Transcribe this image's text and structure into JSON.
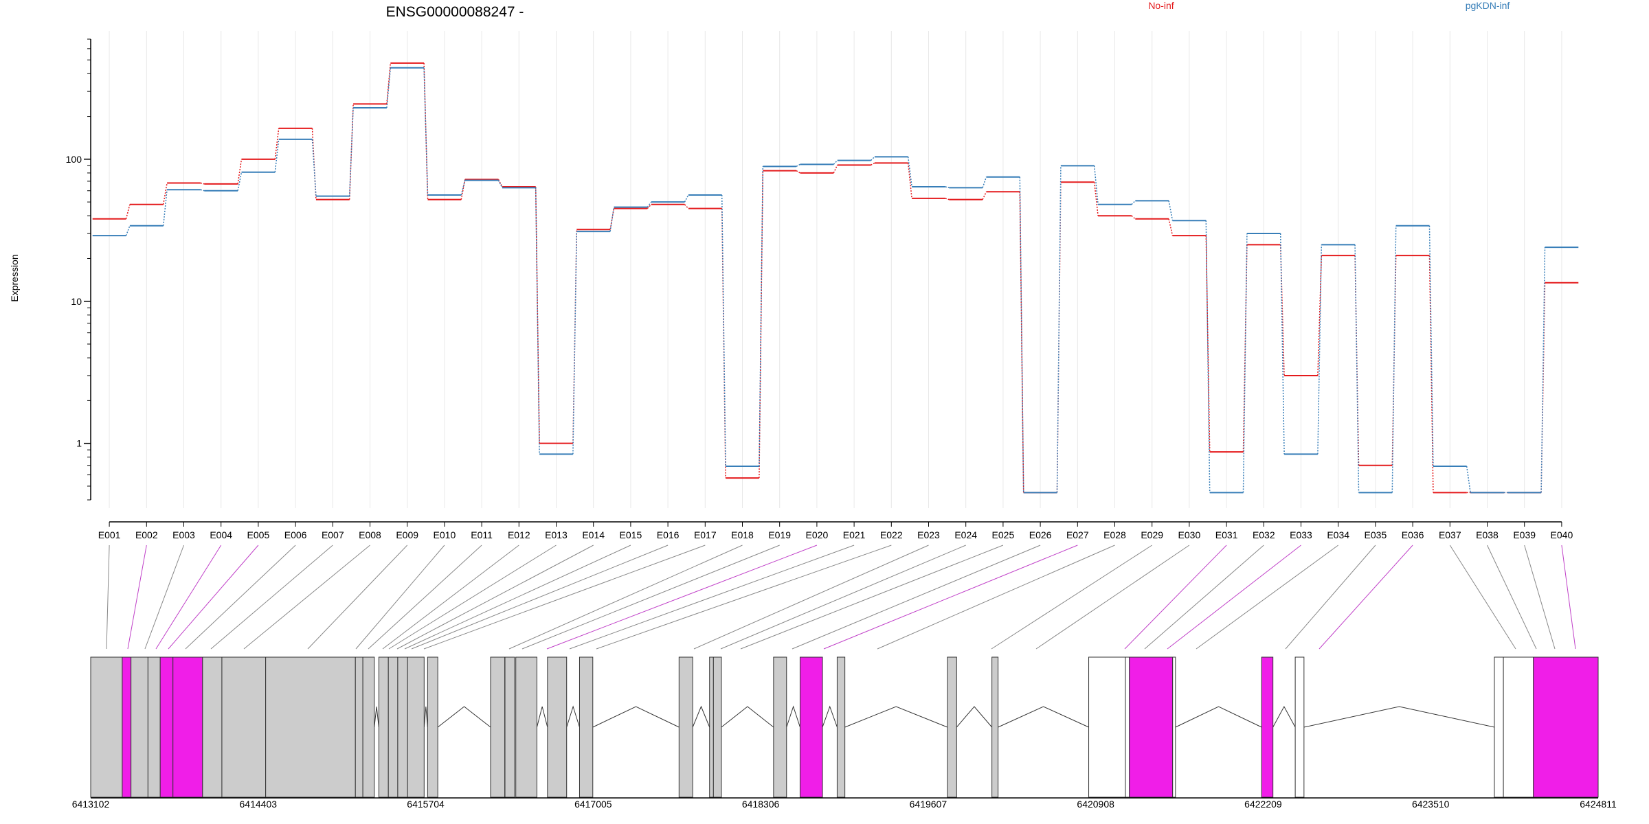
{
  "title": "ENSG00000088247 -",
  "legend": [
    {
      "name": "No-inf",
      "color": "#e41a1c"
    },
    {
      "name": "pgKDN-inf",
      "color": "#377eb8"
    }
  ],
  "colors": {
    "no_inf": "#e41a1c",
    "pgkdn_inf": "#377eb8",
    "exon_grey": "#cccccc",
    "exon_highlight": "#f01ee8",
    "intron_line": "#333333",
    "connector_grey": "#888888"
  },
  "chart_data": {
    "type": "line",
    "ylabel": "Expression",
    "yscale": "log",
    "ylim": [
      0.35,
      800
    ],
    "yticks": [
      1,
      10,
      100
    ],
    "ytick_labels": [
      "1",
      "10",
      "100"
    ],
    "categories": [
      "E001",
      "E002",
      "E003",
      "E004",
      "E005",
      "E006",
      "E007",
      "E008",
      "E009",
      "E010",
      "E011",
      "E012",
      "E013",
      "E014",
      "E015",
      "E016",
      "E017",
      "E018",
      "E019",
      "E020",
      "E021",
      "E022",
      "E023",
      "E024",
      "E025",
      "E026",
      "E027",
      "E028",
      "E029",
      "E030",
      "E031",
      "E032",
      "E033",
      "E034",
      "E035",
      "E036",
      "E037",
      "E038",
      "E039",
      "E040"
    ],
    "series": [
      {
        "name": "No-inf",
        "values": [
          38,
          48,
          68,
          67,
          100,
          165,
          52,
          245,
          475,
          52,
          72,
          64,
          1.0,
          32,
          45,
          48,
          45,
          0.57,
          83,
          80,
          91,
          94,
          53,
          52,
          59,
          0.45,
          69,
          40,
          38,
          29,
          0.87,
          25,
          3.0,
          21,
          0.7,
          21,
          0.45,
          0.45,
          0.45,
          13.5
        ]
      },
      {
        "name": "pgKDN-inf",
        "values": [
          29,
          34,
          61,
          60,
          81,
          138,
          55,
          230,
          440,
          56,
          71,
          63,
          0.84,
          31,
          46,
          50,
          56,
          0.69,
          89,
          92,
          98,
          104,
          64,
          63,
          75,
          0.45,
          90,
          48,
          51,
          37,
          0.45,
          30,
          0.84,
          25,
          0.45,
          34,
          0.69,
          0.45,
          0.45,
          24
        ]
      }
    ],
    "highlighted_exons": [
      "E002",
      "E004",
      "E005",
      "E020",
      "E027",
      "E031",
      "E033",
      "E036",
      "E040"
    ],
    "gene_model": {
      "genomic_range": [
        6413102,
        6424811
      ],
      "axis_ticks": [
        6413102,
        6414403,
        6415704,
        6417005,
        6418306,
        6419607,
        6420908,
        6422209,
        6423510,
        6424811
      ],
      "axis_tick_labels": [
        "6413102",
        "6414403",
        "6415704",
        "6417005",
        "6418306",
        "6419607",
        "6420908",
        "6422209",
        "6423510",
        "6424811"
      ],
      "exons": [
        {
          "start": 6413102,
          "end": 6413347,
          "type": "grey"
        },
        {
          "start": 6413347,
          "end": 6413415,
          "type": "magenta"
        },
        {
          "start": 6413415,
          "end": 6413547,
          "type": "grey"
        },
        {
          "start": 6413547,
          "end": 6413642,
          "type": "grey"
        },
        {
          "start": 6413642,
          "end": 6413741,
          "type": "magenta"
        },
        {
          "start": 6413741,
          "end": 6413971,
          "type": "magenta"
        },
        {
          "start": 6413971,
          "end": 6414121,
          "type": "grey"
        },
        {
          "start": 6414121,
          "end": 6414461,
          "type": "grey"
        },
        {
          "start": 6414461,
          "end": 6415158,
          "type": "grey"
        },
        {
          "start": 6415158,
          "end": 6415216,
          "type": "grey"
        },
        {
          "start": 6415216,
          "end": 6415305,
          "type": "grey"
        },
        {
          "start": 6415340,
          "end": 6415414,
          "type": "grey"
        },
        {
          "start": 6415414,
          "end": 6415487,
          "type": "grey"
        },
        {
          "start": 6415487,
          "end": 6415563,
          "type": "grey"
        },
        {
          "start": 6415563,
          "end": 6415692,
          "type": "grey"
        },
        {
          "start": 6415719,
          "end": 6415798,
          "type": "grey"
        },
        {
          "start": 6416208,
          "end": 6416318,
          "type": "grey"
        },
        {
          "start": 6416320,
          "end": 6416395,
          "type": "grey"
        },
        {
          "start": 6416404,
          "end": 6416568,
          "type": "grey"
        },
        {
          "start": 6416650,
          "end": 6416799,
          "type": "grey"
        },
        {
          "start": 6416899,
          "end": 6417002,
          "type": "grey"
        },
        {
          "start": 6417672,
          "end": 6417778,
          "type": "grey"
        },
        {
          "start": 6417909,
          "end": 6417939,
          "type": "grey"
        },
        {
          "start": 6417939,
          "end": 6418001,
          "type": "grey"
        },
        {
          "start": 6418406,
          "end": 6418507,
          "type": "grey"
        },
        {
          "start": 6418612,
          "end": 6418786,
          "type": "magenta"
        },
        {
          "start": 6418900,
          "end": 6418960,
          "type": "grey"
        },
        {
          "start": 6419756,
          "end": 6419828,
          "type": "grey"
        },
        {
          "start": 6420102,
          "end": 6420150,
          "type": "grey"
        },
        {
          "start": 6420854,
          "end": 6421139,
          "type": "white"
        },
        {
          "start": 6421139,
          "end": 6421170,
          "type": "white"
        },
        {
          "start": 6421170,
          "end": 6421506,
          "type": "magenta"
        },
        {
          "start": 6421506,
          "end": 6421528,
          "type": "white"
        },
        {
          "start": 6422197,
          "end": 6422285,
          "type": "magenta"
        },
        {
          "start": 6422458,
          "end": 6422526,
          "type": "white"
        },
        {
          "start": 6424005,
          "end": 6424075,
          "type": "white"
        },
        {
          "start": 6424075,
          "end": 6424308,
          "type": "white"
        },
        {
          "start": 6424308,
          "end": 6424811,
          "type": "magenta"
        }
      ]
    }
  }
}
